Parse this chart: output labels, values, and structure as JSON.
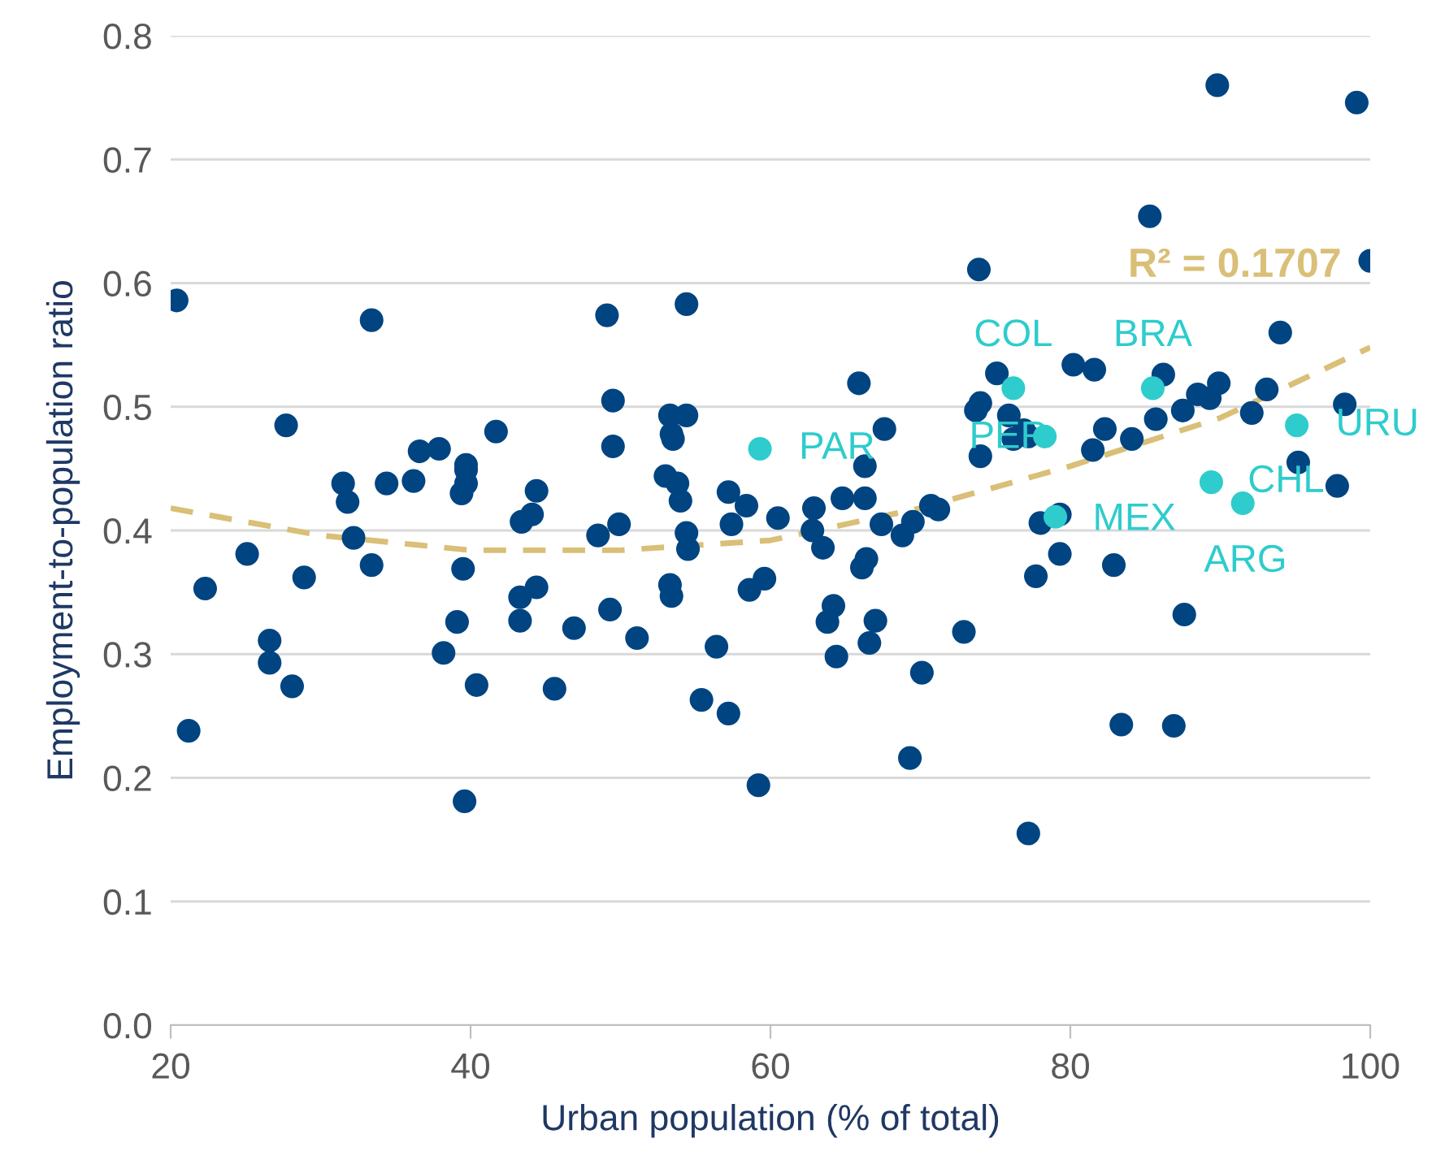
{
  "chart_data": {
    "type": "scatter",
    "xlabel": "Urban population (% of total)",
    "ylabel": "Employment-to-population ratio",
    "xlim": [
      20,
      100
    ],
    "xticks": [
      20,
      40,
      60,
      80,
      100
    ],
    "ylim": [
      0,
      0.8
    ],
    "yticks": [
      {
        "value": 0,
        "label": "0.0"
      },
      {
        "value": 0.1,
        "label": "0.1"
      },
      {
        "value": 0.2,
        "label": "0.2"
      },
      {
        "value": 0.3,
        "label": "0.3"
      },
      {
        "value": 0.4,
        "label": "0.4"
      },
      {
        "value": 0.5,
        "label": "0.5"
      },
      {
        "value": 0.6,
        "label": "0.6"
      },
      {
        "value": 0.7,
        "label": "0.7"
      },
      {
        "value": 0.8,
        "label": "0.8"
      }
    ],
    "grid": "y",
    "series": [
      {
        "marker": "circle",
        "color": "#004481",
        "x": [
          20.4,
          22.3,
          21.2,
          25.1,
          26.6,
          26.6,
          28.1,
          28.9,
          27.7,
          31.5,
          31.8,
          32.2,
          33.4,
          33.4,
          34.4,
          36.2,
          36.6,
          37.9,
          38.2,
          39.1,
          39.5,
          39.6,
          39.7,
          39.7,
          39.7,
          39.4,
          40.4,
          41.7,
          44.4,
          43.4,
          44.1,
          48.5,
          49.3,
          43.3,
          44.4,
          43.3,
          46.9,
          45.6,
          49.1,
          49.5,
          49.5,
          49.9,
          73.9,
          54.4,
          53.3,
          54.4,
          53.4,
          53.5,
          65.9,
          67.6,
          66.3,
          53.0,
          53.8,
          54.0,
          54.4,
          54.5,
          57.2,
          58.4,
          57.4,
          60.5,
          62.9,
          64.8,
          66.3,
          62.8,
          63.5,
          67.4,
          68.8,
          69.5,
          70.7,
          71.2,
          66.4,
          66.1,
          59.6,
          58.6,
          53.3,
          53.4,
          51.1,
          56.4,
          64.2,
          63.8,
          67.0,
          66.6,
          64.4,
          72.9,
          70.1,
          55.4,
          57.2,
          69.3,
          59.2,
          85.3,
          100.0,
          94.0,
          75.1,
          80.2,
          81.6,
          86.2,
          73.7,
          74.0,
          88.5,
          89.9,
          89.3,
          93.1,
          87.5,
          85.7,
          92.1,
          98.3,
          75.9,
          76.2,
          77.2,
          76.9,
          82.3,
          81.5,
          84.1,
          74.0,
          95.2,
          97.8,
          79.3,
          78.0,
          79.3,
          77.7,
          82.9,
          87.6,
          83.4,
          86.9,
          77.2,
          89.8,
          99.1
        ],
        "values": [
          0.586,
          0.353,
          0.238,
          0.381,
          0.311,
          0.293,
          0.274,
          0.362,
          0.485,
          0.438,
          0.423,
          0.394,
          0.57,
          0.372,
          0.438,
          0.44,
          0.464,
          0.466,
          0.301,
          0.326,
          0.369,
          0.181,
          0.453,
          0.449,
          0.438,
          0.43,
          0.275,
          0.48,
          0.432,
          0.407,
          0.413,
          0.396,
          0.336,
          0.346,
          0.354,
          0.327,
          0.321,
          0.272,
          0.574,
          0.505,
          0.468,
          0.405,
          0.611,
          0.583,
          0.493,
          0.493,
          0.478,
          0.474,
          0.519,
          0.482,
          0.452,
          0.444,
          0.438,
          0.424,
          0.398,
          0.385,
          0.431,
          0.42,
          0.405,
          0.41,
          0.418,
          0.426,
          0.426,
          0.4,
          0.386,
          0.405,
          0.396,
          0.407,
          0.42,
          0.417,
          0.377,
          0.37,
          0.361,
          0.352,
          0.356,
          0.347,
          0.313,
          0.306,
          0.339,
          0.326,
          0.327,
          0.309,
          0.298,
          0.318,
          0.285,
          0.263,
          0.252,
          0.216,
          0.194,
          0.654,
          0.618,
          0.56,
          0.527,
          0.534,
          0.53,
          0.526,
          0.497,
          0.503,
          0.51,
          0.519,
          0.507,
          0.514,
          0.497,
          0.49,
          0.495,
          0.502,
          0.493,
          0.474,
          0.476,
          0.481,
          0.482,
          0.465,
          0.474,
          0.46,
          0.455,
          0.436,
          0.413,
          0.406,
          0.381,
          0.363,
          0.372,
          0.332,
          0.243,
          0.242,
          0.155,
          0.76,
          0.746
        ]
      },
      {
        "marker": "circle",
        "color": "#2ecccc",
        "x": [
          59.3,
          76.2,
          78.3,
          85.5,
          79.0,
          89.4,
          91.5,
          95.1
        ],
        "values": [
          0.466,
          0.515,
          0.476,
          0.515,
          0.411,
          0.439,
          0.422,
          0.485
        ]
      },
      {
        "type": "line",
        "color": "#d9bf77",
        "line_style": "dashed",
        "x": [
          20,
          30,
          40,
          50,
          60,
          70,
          80,
          90,
          100
        ],
        "values": [
          0.418,
          0.396,
          0.384,
          0.384,
          0.392,
          0.418,
          0.452,
          0.491,
          0.548
        ]
      }
    ],
    "annotations": [
      {
        "text": "PAR",
        "x": 59.3,
        "y": 0.466
      },
      {
        "text": "COL",
        "x": 76.2,
        "y": 0.515
      },
      {
        "text": "PER",
        "x": 78.3,
        "y": 0.476
      },
      {
        "text": "BRA",
        "x": 85.5,
        "y": 0.515
      },
      {
        "text": "MEX",
        "x": 79.0,
        "y": 0.411
      },
      {
        "text": "ARG",
        "x": 89.4,
        "y": 0.439
      },
      {
        "text": "CHL",
        "x": 91.5,
        "y": 0.422
      },
      {
        "text": "URU",
        "x": 95.1,
        "y": 0.485
      },
      "R² = 0.1707"
    ]
  }
}
